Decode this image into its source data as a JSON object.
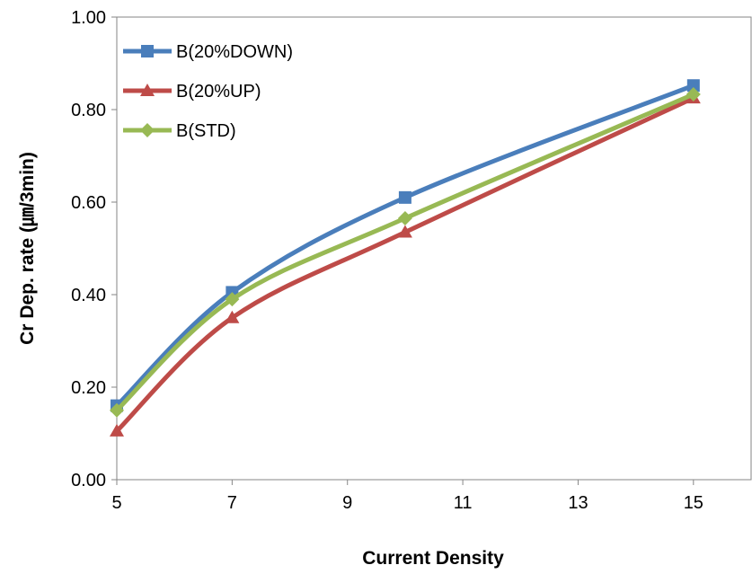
{
  "chart_data": {
    "type": "line",
    "title": "",
    "xlabel": "Current Density",
    "ylabel": "Cr Dep. rate (㎛/3min)",
    "xlim": [
      5,
      16
    ],
    "ylim": [
      0.0,
      1.0
    ],
    "x_ticks": [
      5,
      7,
      9,
      11,
      13,
      15
    ],
    "x_tick_labels": [
      "5",
      "7",
      "9",
      "11",
      "13",
      "15"
    ],
    "y_ticks": [
      0.0,
      0.2,
      0.4,
      0.6,
      0.8,
      1.0
    ],
    "y_tick_labels": [
      "0.00",
      "0.20",
      "0.40",
      "0.60",
      "0.80",
      "1.00"
    ],
    "grid": false,
    "smooth": true,
    "legend_position": "top-left",
    "series": [
      {
        "name": "B(20%DOWN)",
        "color": "#4a7ebb",
        "marker": "square",
        "x": [
          5,
          7,
          10,
          15
        ],
        "y": [
          0.16,
          0.405,
          0.61,
          0.852
        ]
      },
      {
        "name": "B(20%UP)",
        "color": "#be4b48",
        "marker": "triangle",
        "x": [
          5,
          7,
          10,
          15
        ],
        "y": [
          0.105,
          0.35,
          0.535,
          0.825
        ]
      },
      {
        "name": "B(STD)",
        "color": "#98b954",
        "marker": "diamond",
        "x": [
          5,
          7,
          10,
          15
        ],
        "y": [
          0.15,
          0.39,
          0.565,
          0.833
        ]
      }
    ]
  }
}
